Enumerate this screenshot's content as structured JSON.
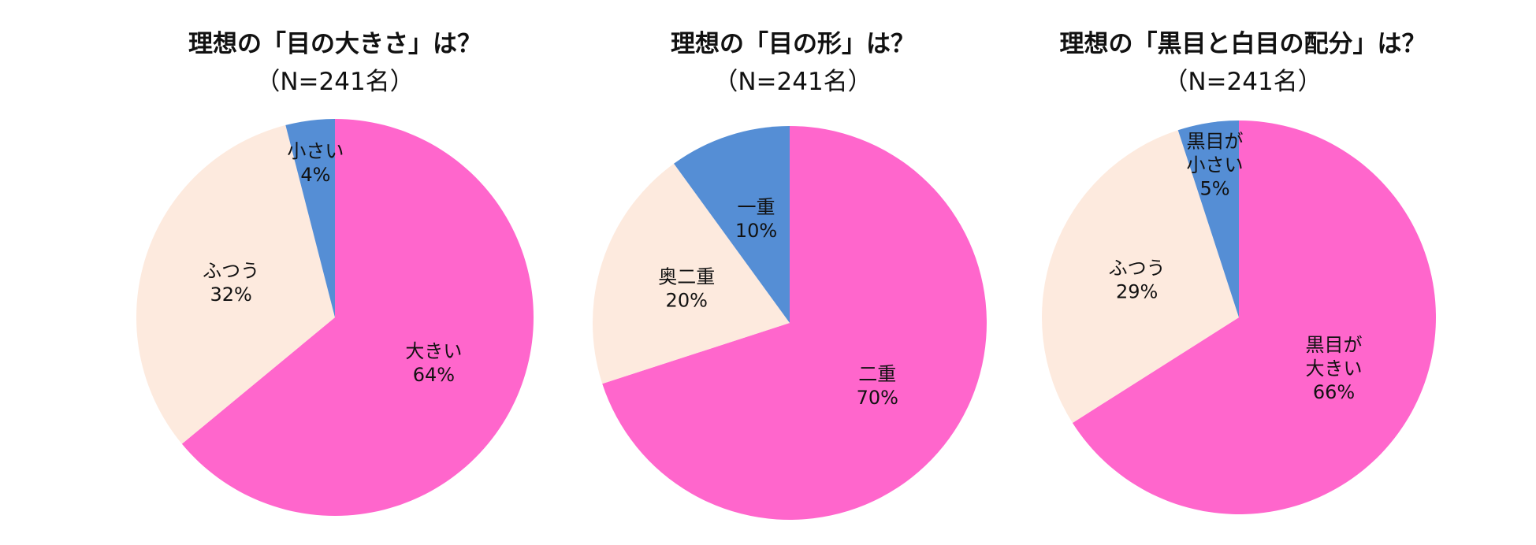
{
  "chart_data": [
    {
      "type": "pie",
      "title": "理想の「目の大きさ」は？",
      "subtitle": "（N=241名）",
      "start": "12 o'clock, clockwise",
      "slices": [
        {
          "label_lines": [
            "大きい"
          ],
          "value": 64,
          "value_label": "64%",
          "color": "#ff66cc"
        },
        {
          "label_lines": [
            "ふつう"
          ],
          "value": 32,
          "value_label": "32%",
          "color": "#fdeade"
        },
        {
          "label_lines": [
            "小さい"
          ],
          "value": 4,
          "value_label": "4%",
          "color": "#558ed5"
        }
      ]
    },
    {
      "type": "pie",
      "title": "理想の「目の形」は？",
      "subtitle": "（N=241名）",
      "start": "12 o'clock, clockwise",
      "slices": [
        {
          "label_lines": [
            "二重"
          ],
          "value": 70,
          "value_label": "70%",
          "color": "#ff66cc"
        },
        {
          "label_lines": [
            "奥二重"
          ],
          "value": 20,
          "value_label": "20%",
          "color": "#fdeade"
        },
        {
          "label_lines": [
            "一重"
          ],
          "value": 10,
          "value_label": "10%",
          "color": "#558ed5"
        }
      ]
    },
    {
      "type": "pie",
      "title": "理想の「黒目と白目の配分」は？",
      "subtitle": "（N=241名）",
      "start": "12 o'clock, clockwise",
      "slices": [
        {
          "label_lines": [
            "黒目が",
            "大きい"
          ],
          "value": 66,
          "value_label": "66%",
          "color": "#ff66cc"
        },
        {
          "label_lines": [
            "ふつう"
          ],
          "value": 29,
          "value_label": "29%",
          "color": "#fdeade"
        },
        {
          "label_lines": [
            "黒目が",
            "小さい"
          ],
          "value": 5,
          "value_label": "5%",
          "color": "#558ed5"
        }
      ]
    }
  ]
}
